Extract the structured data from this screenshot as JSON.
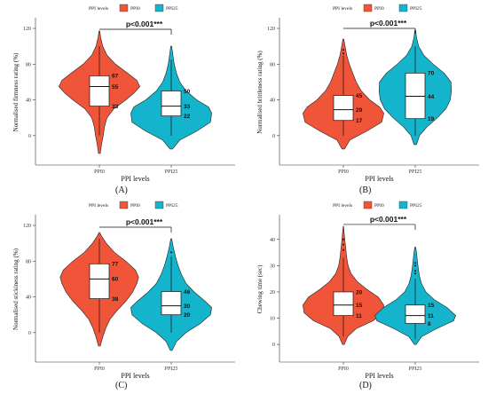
{
  "legend": {
    "title": "PPI levels",
    "items": [
      "PPI0",
      "PPI25"
    ]
  },
  "colors": {
    "PPI0": "#f0553a",
    "PPI25": "#14b4cc"
  },
  "chart_data": [
    {
      "type": "violin",
      "panel": "(A)",
      "xlabel": "PPI levels",
      "ylabel": "Normalised firmness rating (%)",
      "ylim": [
        -25,
        122
      ],
      "yticks": [
        0,
        40,
        80,
        120
      ],
      "significance": "p<0.001***",
      "groups": [
        {
          "name": "PPI0",
          "q1": 33,
          "median": 55,
          "q3": 67,
          "whisker_low": 0,
          "whisker_high": 100,
          "min": -20,
          "max": 117,
          "profile": [
            [
              -20,
              0.02
            ],
            [
              -10,
              0.05
            ],
            [
              0,
              0.09
            ],
            [
              10,
              0.12
            ],
            [
              20,
              0.18
            ],
            [
              30,
              0.34
            ],
            [
              40,
              0.62
            ],
            [
              48,
              0.82
            ],
            [
              55,
              0.95
            ],
            [
              62,
              0.88
            ],
            [
              70,
              0.66
            ],
            [
              80,
              0.38
            ],
            [
              90,
              0.18
            ],
            [
              100,
              0.08
            ],
            [
              110,
              0.03
            ],
            [
              117,
              0.01
            ]
          ],
          "labels": [
            "67",
            "55",
            "33"
          ]
        },
        {
          "name": "PPI25",
          "q1": 22,
          "median": 33,
          "q3": 50,
          "whisker_low": 0,
          "whisker_high": 85,
          "min": -15,
          "max": 100,
          "profile": [
            [
              -15,
              0.03
            ],
            [
              -5,
              0.2
            ],
            [
              5,
              0.6
            ],
            [
              15,
              0.92
            ],
            [
              25,
              0.95
            ],
            [
              32,
              0.88
            ],
            [
              40,
              0.6
            ],
            [
              50,
              0.35
            ],
            [
              60,
              0.2
            ],
            [
              70,
              0.12
            ],
            [
              80,
              0.07
            ],
            [
              90,
              0.04
            ],
            [
              100,
              0.01
            ]
          ],
          "labels": [
            "50",
            "33",
            "22"
          ]
        }
      ]
    },
    {
      "type": "violin",
      "panel": "(B)",
      "xlabel": "PPI levels",
      "ylabel": "Normalised brittleness rating (%)",
      "ylim": [
        -25,
        122
      ],
      "yticks": [
        0,
        40,
        80,
        120
      ],
      "significance": "p<0.001***",
      "groups": [
        {
          "name": "PPI0",
          "q1": 17,
          "median": 29,
          "q3": 45,
          "whisker_low": 0,
          "whisker_high": 90,
          "min": -15,
          "max": 108,
          "outliers": [
            92,
            96
          ],
          "profile": [
            [
              -15,
              0.03
            ],
            [
              -5,
              0.15
            ],
            [
              5,
              0.55
            ],
            [
              15,
              0.9
            ],
            [
              25,
              0.95
            ],
            [
              32,
              0.85
            ],
            [
              40,
              0.62
            ],
            [
              50,
              0.42
            ],
            [
              60,
              0.3
            ],
            [
              70,
              0.22
            ],
            [
              80,
              0.14
            ],
            [
              90,
              0.08
            ],
            [
              100,
              0.04
            ],
            [
              108,
              0.01
            ]
          ],
          "labels": [
            "45",
            "29",
            "17"
          ]
        },
        {
          "name": "PPI25",
          "q1": 19,
          "median": 44,
          "q3": 70,
          "whisker_low": 0,
          "whisker_high": 100,
          "min": -10,
          "max": 118,
          "profile": [
            [
              -10,
              0.03
            ],
            [
              0,
              0.1
            ],
            [
              10,
              0.28
            ],
            [
              20,
              0.52
            ],
            [
              30,
              0.72
            ],
            [
              40,
              0.82
            ],
            [
              50,
              0.85
            ],
            [
              60,
              0.84
            ],
            [
              70,
              0.68
            ],
            [
              80,
              0.42
            ],
            [
              90,
              0.2
            ],
            [
              100,
              0.08
            ],
            [
              110,
              0.03
            ],
            [
              118,
              0.01
            ]
          ],
          "labels": [
            "70",
            "44",
            "19"
          ]
        }
      ]
    },
    {
      "type": "violin",
      "panel": "(C)",
      "xlabel": "PPI levels",
      "ylabel": "Normalised stickiness rating (%)",
      "ylim": [
        -25,
        122
      ],
      "yticks": [
        0,
        40,
        80,
        120
      ],
      "significance": "p<0.001***",
      "groups": [
        {
          "name": "PPI0",
          "q1": 38,
          "median": 60,
          "q3": 77,
          "whisker_low": 0,
          "whisker_high": 105,
          "min": -15,
          "max": 112,
          "profile": [
            [
              -15,
              0.02
            ],
            [
              -5,
              0.08
            ],
            [
              5,
              0.15
            ],
            [
              15,
              0.25
            ],
            [
              25,
              0.42
            ],
            [
              35,
              0.62
            ],
            [
              45,
              0.78
            ],
            [
              55,
              0.88
            ],
            [
              62,
              0.92
            ],
            [
              70,
              0.85
            ],
            [
              80,
              0.62
            ],
            [
              90,
              0.35
            ],
            [
              100,
              0.16
            ],
            [
              108,
              0.05
            ],
            [
              112,
              0.01
            ]
          ],
          "labels": [
            "77",
            "60",
            "38"
          ]
        },
        {
          "name": "PPI25",
          "q1": 20,
          "median": 30,
          "q3": 46,
          "whisker_low": 0,
          "whisker_high": 85,
          "min": -20,
          "max": 105,
          "outliers": [
            90
          ],
          "profile": [
            [
              -20,
              0.02
            ],
            [
              -10,
              0.12
            ],
            [
              0,
              0.35
            ],
            [
              10,
              0.68
            ],
            [
              20,
              0.92
            ],
            [
              28,
              0.95
            ],
            [
              35,
              0.8
            ],
            [
              45,
              0.55
            ],
            [
              55,
              0.35
            ],
            [
              65,
              0.24
            ],
            [
              75,
              0.16
            ],
            [
              85,
              0.1
            ],
            [
              95,
              0.05
            ],
            [
              105,
              0.01
            ]
          ],
          "labels": [
            "46",
            "30",
            "20"
          ]
        }
      ]
    },
    {
      "type": "violin",
      "panel": "(D)",
      "xlabel": "PPI levels",
      "ylabel": "Chewing time (sec)",
      "ylim": [
        -4,
        46
      ],
      "yticks": [
        0,
        10,
        20,
        30,
        40
      ],
      "significance": "p<0.001***",
      "groups": [
        {
          "name": "PPI0",
          "q1": 11,
          "median": 15,
          "q3": 20,
          "whisker_low": 3,
          "whisker_high": 33,
          "min": 0,
          "max": 45,
          "outliers": [
            36,
            38,
            40
          ],
          "profile": [
            [
              0,
              0.02
            ],
            [
              3,
              0.1
            ],
            [
              6,
              0.3
            ],
            [
              9,
              0.7
            ],
            [
              12,
              0.92
            ],
            [
              15,
              0.95
            ],
            [
              18,
              0.82
            ],
            [
              21,
              0.55
            ],
            [
              24,
              0.32
            ],
            [
              27,
              0.18
            ],
            [
              30,
              0.11
            ],
            [
              33,
              0.08
            ],
            [
              36,
              0.06
            ],
            [
              39,
              0.04
            ],
            [
              42,
              0.02
            ],
            [
              45,
              0.005
            ]
          ],
          "labels": [
            "20",
            "15",
            "11"
          ]
        },
        {
          "name": "PPI25",
          "q1": 8,
          "median": 11,
          "q3": 15,
          "whisker_low": 2,
          "whisker_high": 25,
          "min": 0,
          "max": 37,
          "outliers": [
            27,
            28,
            30,
            31
          ],
          "profile": [
            [
              0,
              0.02
            ],
            [
              3,
              0.15
            ],
            [
              6,
              0.5
            ],
            [
              9,
              0.9
            ],
            [
              11,
              0.95
            ],
            [
              14,
              0.75
            ],
            [
              17,
              0.45
            ],
            [
              20,
              0.25
            ],
            [
              23,
              0.15
            ],
            [
              26,
              0.1
            ],
            [
              29,
              0.07
            ],
            [
              32,
              0.05
            ],
            [
              35,
              0.03
            ],
            [
              37,
              0.01
            ]
          ],
          "labels": [
            "15",
            "11",
            "8"
          ]
        }
      ]
    }
  ]
}
